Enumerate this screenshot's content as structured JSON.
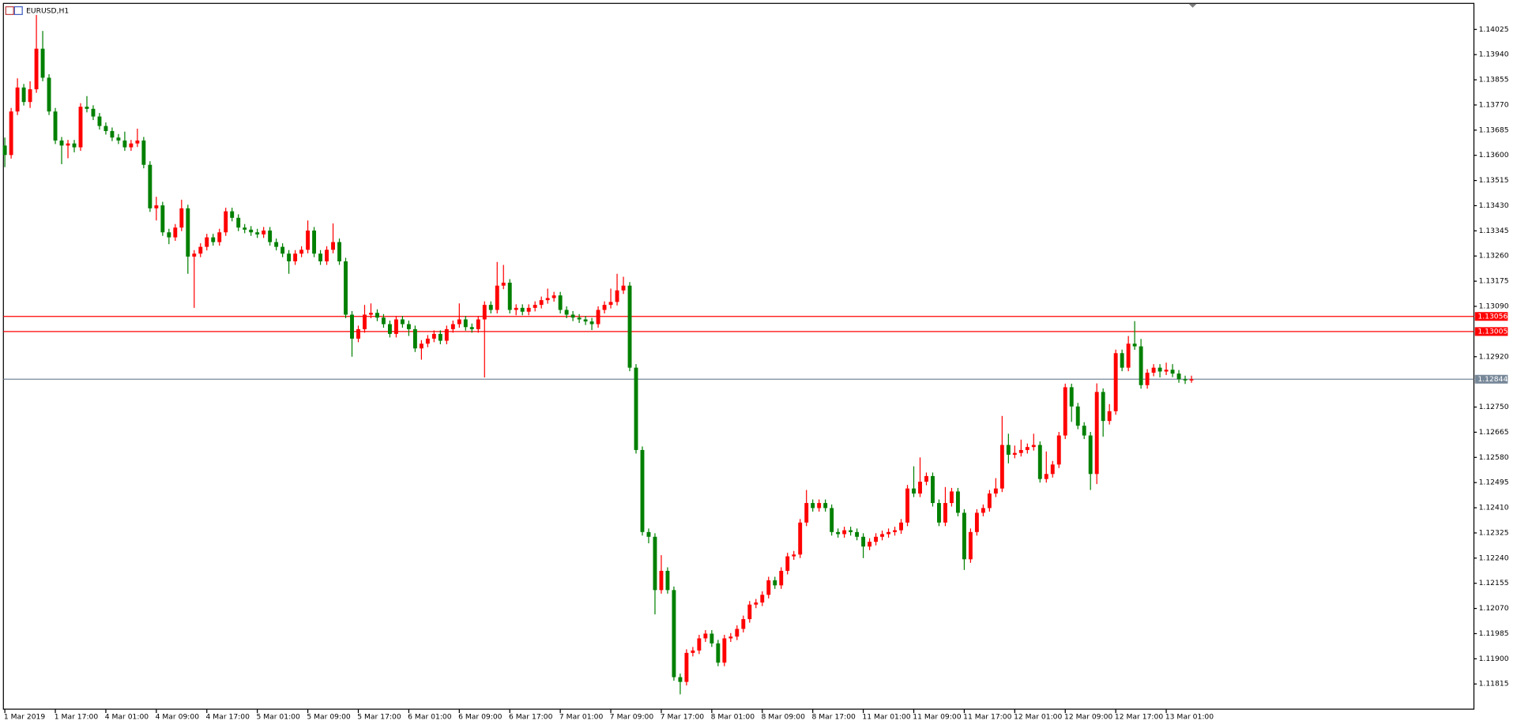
{
  "chart_data": {
    "type": "candlestick",
    "title": "EURUSD,H1",
    "up_color": "#ff0000",
    "down_color": "#008000",
    "ylim": [
      1.1173,
      1.14113
    ],
    "yticks": [
      1.14025,
      {
        "value": 1.1394,
        "label": "1.13940"
      },
      1.13855,
      {
        "value": 1.1377,
        "label": "1.13770"
      },
      1.13685,
      {
        "value": 1.136,
        "label": "1.13600"
      },
      1.13515,
      {
        "value": 1.1343,
        "label": "1.13430"
      },
      1.13345,
      {
        "value": 1.1326,
        "label": "1.13260"
      },
      1.13175,
      {
        "value": 1.1309,
        "label": "1.13090"
      },
      {
        "value": 1.1292,
        "label": "1.12920"
      },
      {
        "value": 1.1275,
        "label": "1.12750"
      },
      1.12665,
      {
        "value": 1.1258,
        "label": "1.12580"
      },
      1.12495,
      {
        "value": 1.1241,
        "label": "1.12410"
      },
      1.12325,
      {
        "value": 1.1224,
        "label": "1.12240"
      },
      1.12155,
      {
        "value": 1.1207,
        "label": "1.12070"
      },
      1.11985,
      {
        "value": 1.119,
        "label": "1.11900"
      },
      1.11815
    ],
    "levels": [
      {
        "value": 1.13056,
        "color": "#ff0000"
      },
      {
        "value": 1.13005,
        "color": "#ff0000"
      },
      {
        "value": 1.12844,
        "color": "#778899"
      }
    ],
    "categories": [
      "1 Mar 2019",
      null,
      null,
      null,
      null,
      null,
      null,
      null,
      "1 Mar 17:00",
      null,
      null,
      null,
      null,
      null,
      null,
      null,
      "4 Mar 01:00",
      null,
      null,
      null,
      null,
      null,
      null,
      null,
      "4 Mar 09:00",
      null,
      null,
      null,
      null,
      null,
      null,
      null,
      "4 Mar 17:00",
      null,
      null,
      null,
      null,
      null,
      null,
      null,
      "5 Mar 01:00",
      null,
      null,
      null,
      null,
      null,
      null,
      null,
      "5 Mar 09:00",
      null,
      null,
      null,
      null,
      null,
      null,
      null,
      "5 Mar 17:00",
      null,
      null,
      null,
      null,
      null,
      null,
      null,
      "6 Mar 01:00",
      null,
      null,
      null,
      null,
      null,
      null,
      null,
      "6 Mar 09:00",
      null,
      null,
      null,
      null,
      null,
      null,
      null,
      "6 Mar 17:00",
      null,
      null,
      null,
      null,
      null,
      null,
      null,
      "7 Mar 01:00",
      null,
      null,
      null,
      null,
      null,
      null,
      null,
      "7 Mar 09:00",
      null,
      null,
      null,
      null,
      null,
      null,
      null,
      "7 Mar 17:00",
      null,
      null,
      null,
      null,
      null,
      null,
      null,
      "8 Mar 01:00",
      null,
      null,
      null,
      null,
      null,
      null,
      null,
      "8 Mar 09:00",
      null,
      null,
      null,
      null,
      null,
      null,
      null,
      "8 Mar 17:00",
      null,
      null,
      null,
      null,
      null,
      null,
      null,
      "11 Mar 01:00",
      null,
      null,
      null,
      null,
      null,
      null,
      null,
      "11 Mar 09:00",
      null,
      null,
      null,
      null,
      null,
      null,
      null,
      "11 Mar 17:00",
      null,
      null,
      null,
      null,
      null,
      null,
      null,
      "12 Mar 01:00",
      null,
      null,
      null,
      null,
      null,
      null,
      null,
      "12 Mar 09:00",
      null,
      null,
      null,
      null,
      null,
      null,
      null,
      "12 Mar 17:00",
      null,
      null,
      null,
      null,
      null,
      null,
      null,
      "13 Mar 01:00",
      null,
      null,
      null,
      null
    ],
    "ohlc": [
      [
        1.13633,
        1.1366,
        1.1356,
        1.13601
      ],
      [
        1.13601,
        1.1376,
        1.13589,
        1.13748
      ],
      [
        1.13748,
        1.1386,
        1.13736,
        1.13829
      ],
      [
        1.13829,
        1.13841,
        1.13768,
        1.1378
      ],
      [
        1.1378,
        1.1385,
        1.1376,
        1.13823
      ],
      [
        1.13823,
        1.14074,
        1.13811,
        1.1396
      ],
      [
        1.1396,
        1.1402,
        1.1385,
        1.13862
      ],
      [
        1.13862,
        1.13874,
        1.13736,
        1.13748
      ],
      [
        1.13748,
        1.1376,
        1.13638,
        1.1365
      ],
      [
        1.1365,
        1.13662,
        1.1357,
        1.13633
      ],
      [
        1.13633,
        1.13652,
        1.1359,
        1.1364
      ],
      [
        1.1364,
        1.13652,
        1.1361,
        1.13627
      ],
      [
        1.13627,
        1.13776,
        1.13615,
        1.13764
      ],
      [
        1.13764,
        1.138,
        1.13745,
        1.13757
      ],
      [
        1.13757,
        1.13769,
        1.13719,
        1.13731
      ],
      [
        1.13731,
        1.13743,
        1.13687,
        1.13699
      ],
      [
        1.13699,
        1.13711,
        1.1367,
        1.13682
      ],
      [
        1.13682,
        1.13694,
        1.13648,
        1.1366
      ],
      [
        1.1366,
        1.13672,
        1.13638,
        1.1365
      ],
      [
        1.1365,
        1.1368,
        1.13615,
        1.13627
      ],
      [
        1.13627,
        1.13652,
        1.13615,
        1.1364
      ],
      [
        1.1364,
        1.1369,
        1.13628,
        1.1365
      ],
      [
        1.1365,
        1.13662,
        1.13556,
        1.13568
      ],
      [
        1.13568,
        1.1358,
        1.13409,
        1.13421
      ],
      [
        1.13421,
        1.1346,
        1.1338,
        1.13431
      ],
      [
        1.13431,
        1.13443,
        1.13328,
        1.1334
      ],
      [
        1.1334,
        1.13352,
        1.133,
        1.13323
      ],
      [
        1.13323,
        1.13368,
        1.13311,
        1.13356
      ],
      [
        1.13356,
        1.1345,
        1.13344,
        1.13421
      ],
      [
        1.13421,
        1.13433,
        1.132,
        1.13258
      ],
      [
        1.13258,
        1.1328,
        1.13085,
        1.13268
      ],
      [
        1.13268,
        1.13303,
        1.13256,
        1.13291
      ],
      [
        1.13291,
        1.13335,
        1.13279,
        1.13323
      ],
      [
        1.13323,
        1.13335,
        1.13295,
        1.13307
      ],
      [
        1.13307,
        1.13352,
        1.13295,
        1.1334
      ],
      [
        1.1334,
        1.13423,
        1.13328,
        1.13411
      ],
      [
        1.13411,
        1.13423,
        1.13377,
        1.13389
      ],
      [
        1.13389,
        1.13401,
        1.13344,
        1.13356
      ],
      [
        1.13356,
        1.13368,
        1.13337,
        1.13349
      ],
      [
        1.13349,
        1.13361,
        1.13328,
        1.1334
      ],
      [
        1.1334,
        1.13352,
        1.13321,
        1.13333
      ],
      [
        1.13333,
        1.13358,
        1.13321,
        1.13346
      ],
      [
        1.13346,
        1.13358,
        1.13295,
        1.13307
      ],
      [
        1.13307,
        1.13319,
        1.13279,
        1.13291
      ],
      [
        1.13291,
        1.13303,
        1.13256,
        1.13268
      ],
      [
        1.13268,
        1.1328,
        1.132,
        1.13242
      ],
      [
        1.13242,
        1.1328,
        1.1323,
        1.13268
      ],
      [
        1.13268,
        1.13293,
        1.13256,
        1.13281
      ],
      [
        1.13281,
        1.1338,
        1.13269,
        1.13346
      ],
      [
        1.13346,
        1.13358,
        1.13256,
        1.13268
      ],
      [
        1.13268,
        1.1328,
        1.1323,
        1.13242
      ],
      [
        1.13242,
        1.13293,
        1.1323,
        1.13281
      ],
      [
        1.13281,
        1.1337,
        1.13269,
        1.13307
      ],
      [
        1.13307,
        1.13319,
        1.1323,
        1.13242
      ],
      [
        1.13242,
        1.13254,
        1.1305,
        1.13062
      ],
      [
        1.13062,
        1.13074,
        1.1292,
        1.12981
      ],
      [
        1.12981,
        1.13025,
        1.12969,
        1.13013
      ],
      [
        1.13013,
        1.13095,
        1.13001,
        1.13062
      ],
      [
        1.13062,
        1.131,
        1.1305,
        1.13068
      ],
      [
        1.13068,
        1.1308,
        1.1304,
        1.13052
      ],
      [
        1.13052,
        1.13064,
        1.13018,
        1.1303
      ],
      [
        1.1303,
        1.13042,
        1.12985,
        1.12997
      ],
      [
        1.12997,
        1.13058,
        1.12985,
        1.13046
      ],
      [
        1.13046,
        1.13058,
        1.13018,
        1.1303
      ],
      [
        1.1303,
        1.13042,
        1.1299,
        1.13013
      ],
      [
        1.13013,
        1.13025,
        1.12936,
        1.12948
      ],
      [
        1.12948,
        1.12976,
        1.1291,
        1.12964
      ],
      [
        1.12964,
        1.12993,
        1.12952,
        1.12981
      ],
      [
        1.12981,
        1.13009,
        1.12969,
        1.12997
      ],
      [
        1.12997,
        1.13009,
        1.12962,
        1.12974
      ],
      [
        1.12974,
        1.13025,
        1.12962,
        1.13013
      ],
      [
        1.13013,
        1.13042,
        1.13001,
        1.1303
      ],
      [
        1.1303,
        1.131,
        1.13018,
        1.13046
      ],
      [
        1.13046,
        1.13058,
        1.13008,
        1.1302
      ],
      [
        1.1302,
        1.13032,
        1.13001,
        1.13013
      ],
      [
        1.13013,
        1.13058,
        1.13001,
        1.13046
      ],
      [
        1.13046,
        1.13107,
        1.1285,
        1.13095
      ],
      [
        1.13095,
        1.13107,
        1.13066,
        1.13078
      ],
      [
        1.13078,
        1.1324,
        1.13066,
        1.1316
      ],
      [
        1.1316,
        1.1323,
        1.13148,
        1.1317
      ],
      [
        1.1317,
        1.13182,
        1.13066,
        1.13078
      ],
      [
        1.13078,
        1.13097,
        1.1306,
        1.13085
      ],
      [
        1.13085,
        1.13097,
        1.1306,
        1.13072
      ],
      [
        1.13072,
        1.13097,
        1.1306,
        1.13085
      ],
      [
        1.13085,
        1.13107,
        1.13073,
        1.13095
      ],
      [
        1.13095,
        1.13123,
        1.13083,
        1.13111
      ],
      [
        1.13111,
        1.1315,
        1.13099,
        1.13118
      ],
      [
        1.13118,
        1.13139,
        1.13106,
        1.13127
      ],
      [
        1.13127,
        1.13139,
        1.13066,
        1.13078
      ],
      [
        1.13078,
        1.1309,
        1.1305,
        1.13062
      ],
      [
        1.13062,
        1.13074,
        1.1304,
        1.13052
      ],
      [
        1.13052,
        1.13064,
        1.13034,
        1.13046
      ],
      [
        1.13046,
        1.13058,
        1.13027,
        1.13039
      ],
      [
        1.13039,
        1.13051,
        1.1301,
        1.1303
      ],
      [
        1.1303,
        1.1309,
        1.13018,
        1.13078
      ],
      [
        1.13078,
        1.13107,
        1.13066,
        1.13095
      ],
      [
        1.13095,
        1.1315,
        1.13083,
        1.13105
      ],
      [
        1.13105,
        1.132,
        1.13093,
        1.13144
      ],
      [
        1.13144,
        1.1319,
        1.13132,
        1.1316
      ],
      [
        1.1316,
        1.13172,
        1.12871,
        1.12883
      ],
      [
        1.12883,
        1.12895,
        1.12593,
        1.12605
      ],
      [
        1.12605,
        1.12617,
        1.12316,
        1.12328
      ],
      [
        1.12328,
        1.1234,
        1.1229,
        1.12312
      ],
      [
        1.12312,
        1.12324,
        1.1205,
        1.12132
      ],
      [
        1.12132,
        1.1225,
        1.1212,
        1.12197
      ],
      [
        1.12197,
        1.12209,
        1.1212,
        1.12132
      ],
      [
        1.12132,
        1.12144,
        1.11826,
        1.11838
      ],
      [
        1.11838,
        1.1185,
        1.1178,
        1.11822
      ],
      [
        1.11822,
        1.11932,
        1.1181,
        1.1192
      ],
      [
        1.1192,
        1.1194,
        1.11908,
        1.11928
      ],
      [
        1.11928,
        1.11981,
        1.11916,
        1.11969
      ],
      [
        1.11969,
        1.11997,
        1.11957,
        1.11985
      ],
      [
        1.11985,
        1.11997,
        1.1194,
        1.11952
      ],
      [
        1.11952,
        1.11964,
        1.11875,
        1.11887
      ],
      [
        1.11887,
        1.11981,
        1.11875,
        1.11969
      ],
      [
        1.11969,
        1.11987,
        1.11957,
        1.11975
      ],
      [
        1.11975,
        1.12013,
        1.11963,
        1.12001
      ],
      [
        1.12001,
        1.12046,
        1.11989,
        1.12034
      ],
      [
        1.12034,
        1.12095,
        1.12022,
        1.12083
      ],
      [
        1.12083,
        1.12102,
        1.12071,
        1.1209
      ],
      [
        1.1209,
        1.12128,
        1.12078,
        1.12116
      ],
      [
        1.12116,
        1.12177,
        1.12104,
        1.12165
      ],
      [
        1.12165,
        1.12177,
        1.12136,
        1.12148
      ],
      [
        1.12148,
        1.12209,
        1.12136,
        1.12197
      ],
      [
        1.12197,
        1.12258,
        1.12185,
        1.12246
      ],
      [
        1.12246,
        1.12264,
        1.12234,
        1.12252
      ],
      [
        1.12252,
        1.12372,
        1.1224,
        1.1236
      ],
      [
        1.1236,
        1.1247,
        1.12348,
        1.12426
      ],
      [
        1.12426,
        1.12438,
        1.12397,
        1.12409
      ],
      [
        1.12409,
        1.12438,
        1.12397,
        1.12426
      ],
      [
        1.12426,
        1.12438,
        1.12397,
        1.12409
      ],
      [
        1.12409,
        1.12421,
        1.12316,
        1.12328
      ],
      [
        1.12328,
        1.1234,
        1.12309,
        1.12321
      ],
      [
        1.12321,
        1.12346,
        1.12309,
        1.12334
      ],
      [
        1.12334,
        1.12346,
        1.12316,
        1.12328
      ],
      [
        1.12328,
        1.1234,
        1.123,
        1.12312
      ],
      [
        1.12312,
        1.12324,
        1.1224,
        1.12279
      ],
      [
        1.12279,
        1.12307,
        1.12267,
        1.12295
      ],
      [
        1.12295,
        1.12324,
        1.12283,
        1.12312
      ],
      [
        1.12312,
        1.12333,
        1.123,
        1.12321
      ],
      [
        1.12321,
        1.1234,
        1.12309,
        1.12328
      ],
      [
        1.12328,
        1.12346,
        1.12316,
        1.12334
      ],
      [
        1.12334,
        1.12372,
        1.12322,
        1.1236
      ],
      [
        1.1236,
        1.12487,
        1.12348,
        1.12475
      ],
      [
        1.12475,
        1.1255,
        1.12446,
        1.12458
      ],
      [
        1.12458,
        1.1258,
        1.12446,
        1.12498
      ],
      [
        1.12498,
        1.12529,
        1.12486,
        1.12517
      ],
      [
        1.12517,
        1.12529,
        1.12414,
        1.12426
      ],
      [
        1.12426,
        1.12438,
        1.12348,
        1.1236
      ],
      [
        1.1236,
        1.1248,
        1.12348,
        1.12426
      ],
      [
        1.12426,
        1.12477,
        1.12414,
        1.12465
      ],
      [
        1.12465,
        1.12477,
        1.12381,
        1.12393
      ],
      [
        1.12393,
        1.12405,
        1.122,
        1.12236
      ],
      [
        1.12236,
        1.1234,
        1.12224,
        1.12328
      ],
      [
        1.12328,
        1.12405,
        1.12316,
        1.12393
      ],
      [
        1.12393,
        1.12421,
        1.12381,
        1.12409
      ],
      [
        1.12409,
        1.1247,
        1.12397,
        1.12458
      ],
      [
        1.12458,
        1.1251,
        1.12446,
        1.12475
      ],
      [
        1.12475,
        1.1272,
        1.12463,
        1.12622
      ],
      [
        1.12622,
        1.1266,
        1.1256,
        1.12589
      ],
      [
        1.12589,
        1.1262,
        1.12577,
        1.12595
      ],
      [
        1.12595,
        1.1264,
        1.12583,
        1.12605
      ],
      [
        1.12605,
        1.12627,
        1.12593,
        1.12615
      ],
      [
        1.12615,
        1.1266,
        1.12603,
        1.12622
      ],
      [
        1.12622,
        1.12634,
        1.12495,
        1.12507
      ],
      [
        1.12507,
        1.126,
        1.12495,
        1.12524
      ],
      [
        1.12524,
        1.12568,
        1.12512,
        1.12556
      ],
      [
        1.12556,
        1.12666,
        1.12544,
        1.12654
      ],
      [
        1.12654,
        1.12829,
        1.12642,
        1.12817
      ],
      [
        1.12817,
        1.12829,
        1.127,
        1.12752
      ],
      [
        1.12752,
        1.12764,
        1.12675,
        1.12687
      ],
      [
        1.12687,
        1.12699,
        1.12642,
        1.12654
      ],
      [
        1.12654,
        1.12666,
        1.1247,
        1.12524
      ],
      [
        1.12524,
        1.1283,
        1.1249,
        1.12801
      ],
      [
        1.12801,
        1.12813,
        1.1265,
        1.12703
      ],
      [
        1.12703,
        1.1276,
        1.12691,
        1.12736
      ],
      [
        1.12736,
        1.12944,
        1.12724,
        1.12932
      ],
      [
        1.12932,
        1.12944,
        1.12871,
        1.12883
      ],
      [
        1.12883,
        1.1299,
        1.12871,
        1.12964
      ],
      [
        1.12964,
        1.1304,
        1.12943,
        1.12955
      ],
      [
        1.12955,
        1.1298,
        1.12812,
        1.12824
      ],
      [
        1.12824,
        1.12878,
        1.12812,
        1.12866
      ],
      [
        1.12866,
        1.12895,
        1.12854,
        1.12883
      ],
      [
        1.12883,
        1.12895,
        1.1285,
        1.1287
      ],
      [
        1.1287,
        1.129,
        1.12858,
        1.12876
      ],
      [
        1.12876,
        1.12895,
        1.12851,
        1.12863
      ],
      [
        1.12863,
        1.12875,
        1.12832,
        1.12844
      ],
      [
        1.12844,
        1.12856,
        1.12828,
        1.1284
      ],
      [
        1.1284,
        1.12856,
        1.12832,
        1.12844
      ]
    ]
  }
}
